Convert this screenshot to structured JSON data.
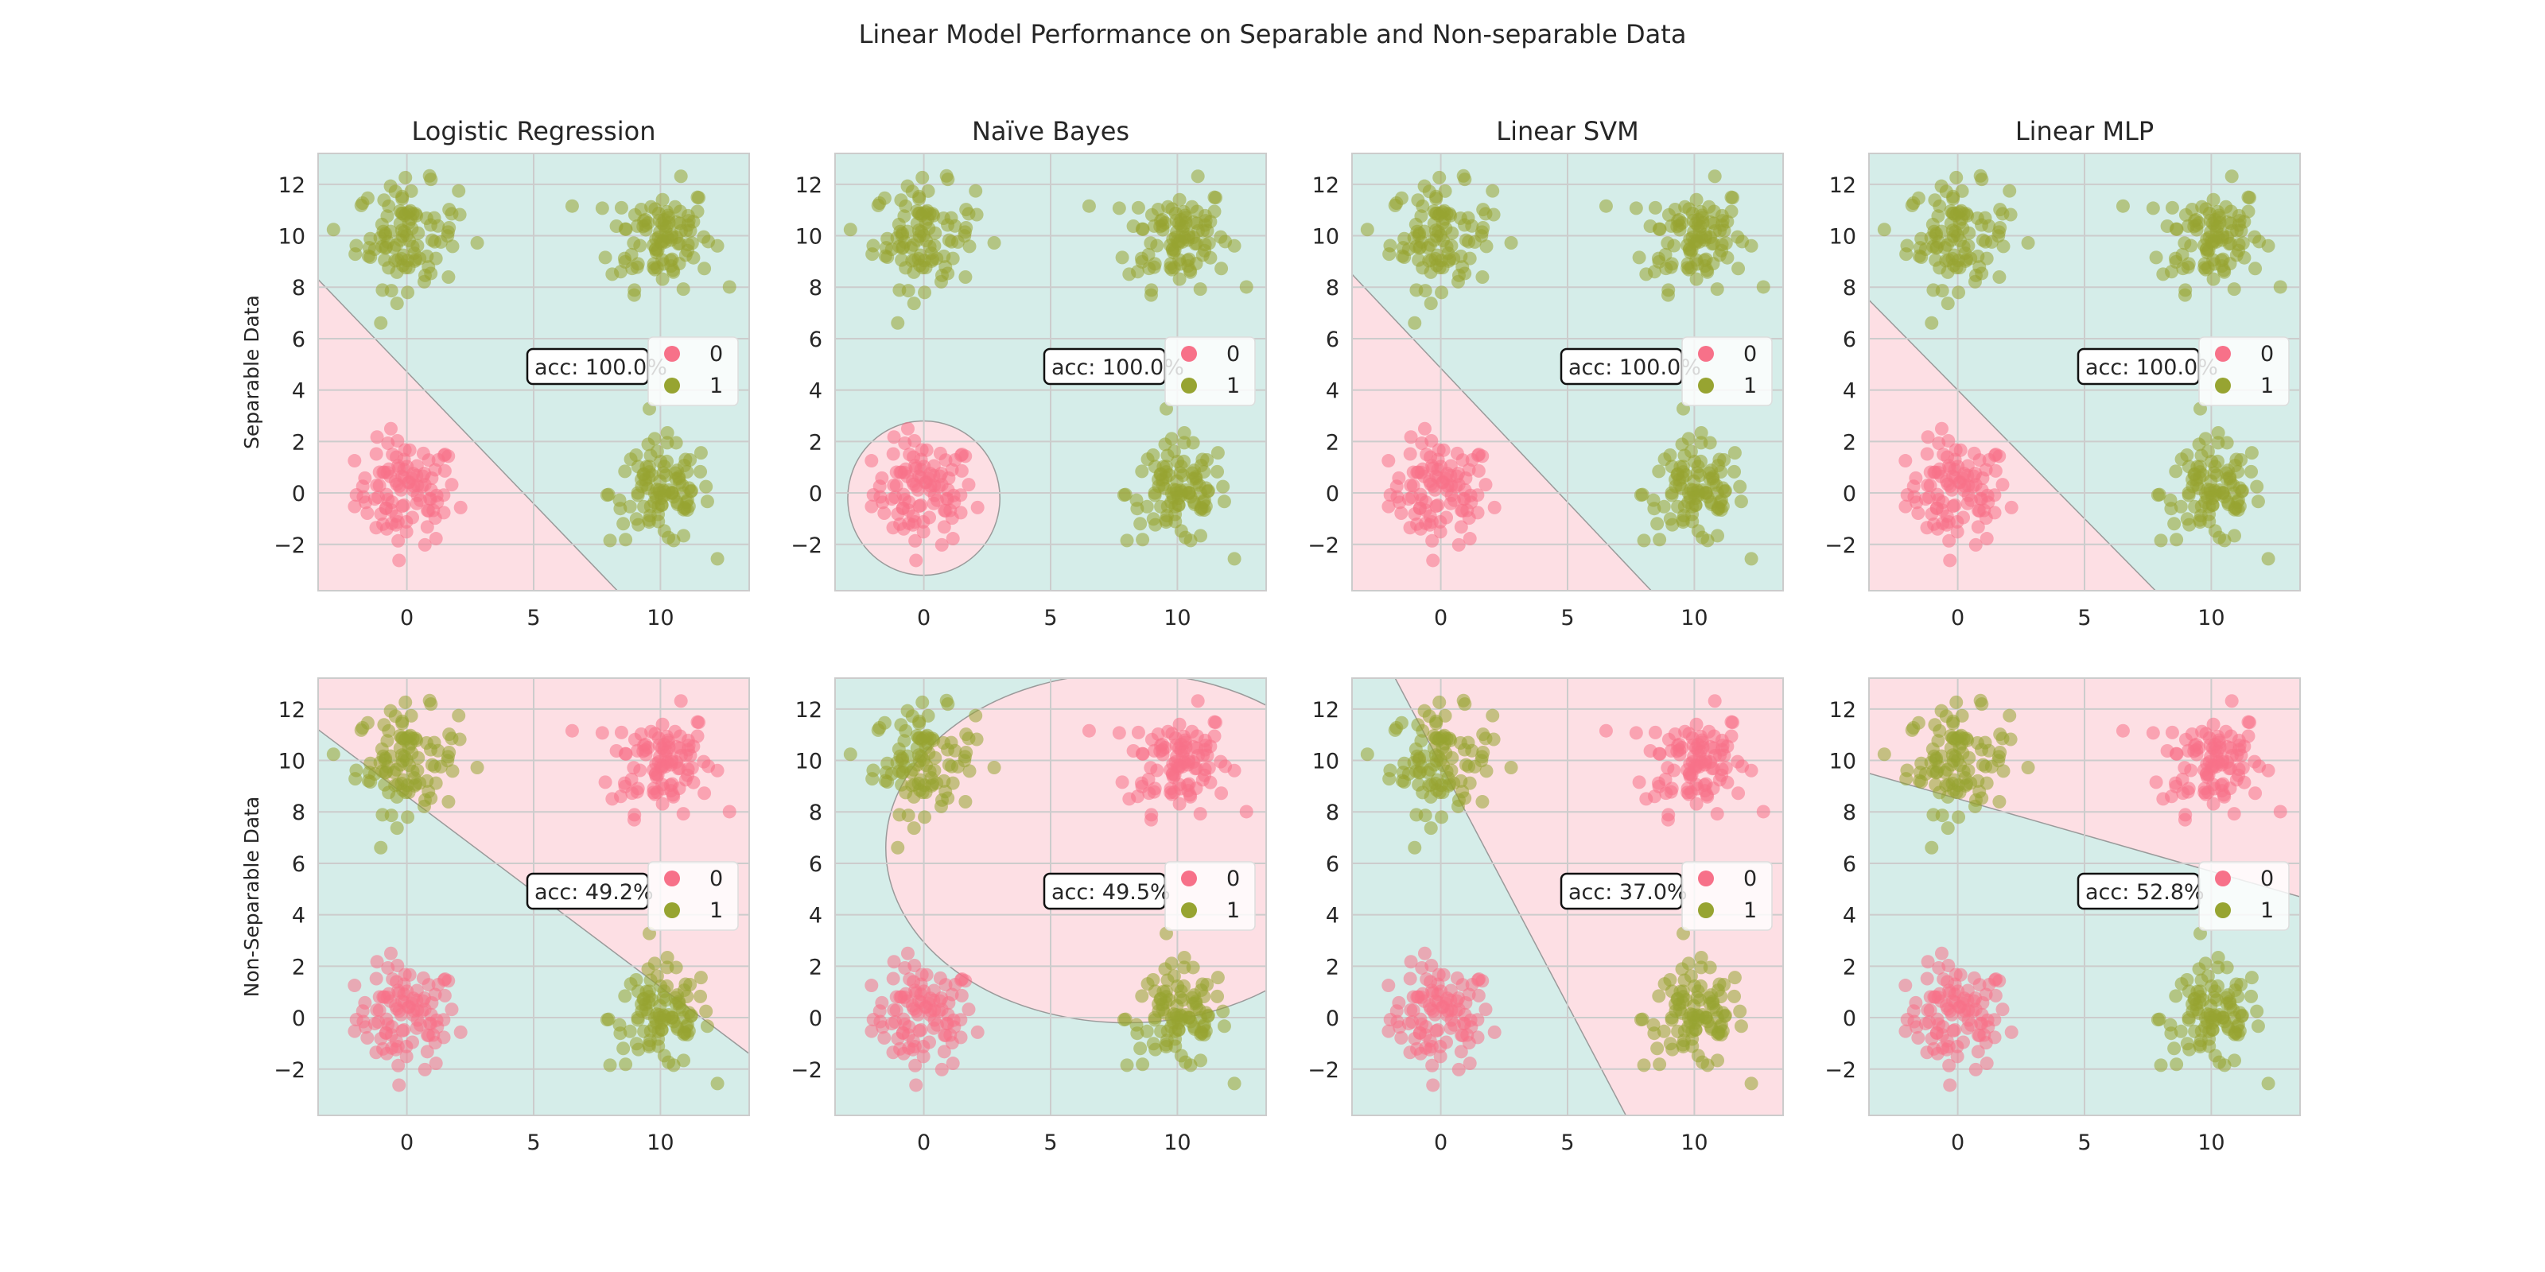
{
  "chart_data": {
    "type": "scatter",
    "title": "Linear Model Performance on Separable and Non-separable Data",
    "columns": [
      "Logistic Regression",
      "Naïve Bayes",
      "Linear SVM",
      "Linear MLP"
    ],
    "rows": [
      "Separable Data",
      "Non-Separable Data"
    ],
    "xlim": [
      -3.5,
      13.5
    ],
    "ylim": [
      -3.8,
      13.2
    ],
    "xticks": [
      "0",
      "5",
      "10"
    ],
    "yticks": [
      "−2",
      "0",
      "2",
      "4",
      "6",
      "8",
      "10",
      "12"
    ],
    "grid": true,
    "legend": {
      "placement": "center-right",
      "entries": [
        "0",
        "1"
      ]
    },
    "colors": {
      "class0": "#f77189",
      "class1": "#97a431",
      "region0": "#fddfe4",
      "region1": "#d5ede9",
      "boundary": "#9a9a9a"
    },
    "clusters": {
      "spread_sd": 1.0,
      "points_per_cluster": 100,
      "centers": [
        [
          0,
          0
        ],
        [
          10,
          10
        ],
        [
          0,
          10
        ],
        [
          10,
          0
        ]
      ],
      "separable_labels": [
        "0",
        "1",
        "1",
        "1"
      ],
      "non_separable_labels": [
        "0",
        "0",
        "1",
        "1"
      ]
    },
    "accuracy": {
      "separable": [
        "acc: 100.0%",
        "acc: 100.0%",
        "acc: 100.0%",
        "acc: 100.0%"
      ],
      "non_separable": [
        "acc: 49.2%",
        "acc: 49.5%",
        "acc: 37.0%",
        "acc: 52.8%"
      ]
    },
    "boundaries": {
      "separable": [
        {
          "kind": "line",
          "p1": [
            -3.5,
            8.3
          ],
          "p2": [
            8.3,
            -3.8
          ],
          "class0_side": "lower-left"
        },
        {
          "kind": "circle",
          "center": [
            0,
            -0.2
          ],
          "radius": 3.0,
          "class0_side": "inside"
        },
        {
          "kind": "line",
          "p1": [
            -3.5,
            8.5
          ],
          "p2": [
            8.3,
            -3.8
          ],
          "class0_side": "lower-left"
        },
        {
          "kind": "line",
          "p1": [
            -3.5,
            7.5
          ],
          "p2": [
            7.8,
            -3.8
          ],
          "class0_side": "lower-left"
        }
      ],
      "non_separable": [
        {
          "kind": "line",
          "p1": [
            -3.5,
            11.2
          ],
          "p2": [
            13.5,
            -1.4
          ],
          "class0_side": "upper-right"
        },
        {
          "kind": "ellipse",
          "center": [
            8.0,
            6.6
          ],
          "radii": [
            9.5,
            6.8
          ],
          "class0_side": "inside"
        },
        {
          "kind": "line",
          "p1": [
            -1.8,
            13.2
          ],
          "p2": [
            7.3,
            -3.8
          ],
          "class0_side": "upper-right"
        },
        {
          "kind": "line",
          "p1": [
            -3.5,
            9.5
          ],
          "p2": [
            13.5,
            4.7
          ],
          "class0_side": "upper-right"
        }
      ]
    }
  }
}
